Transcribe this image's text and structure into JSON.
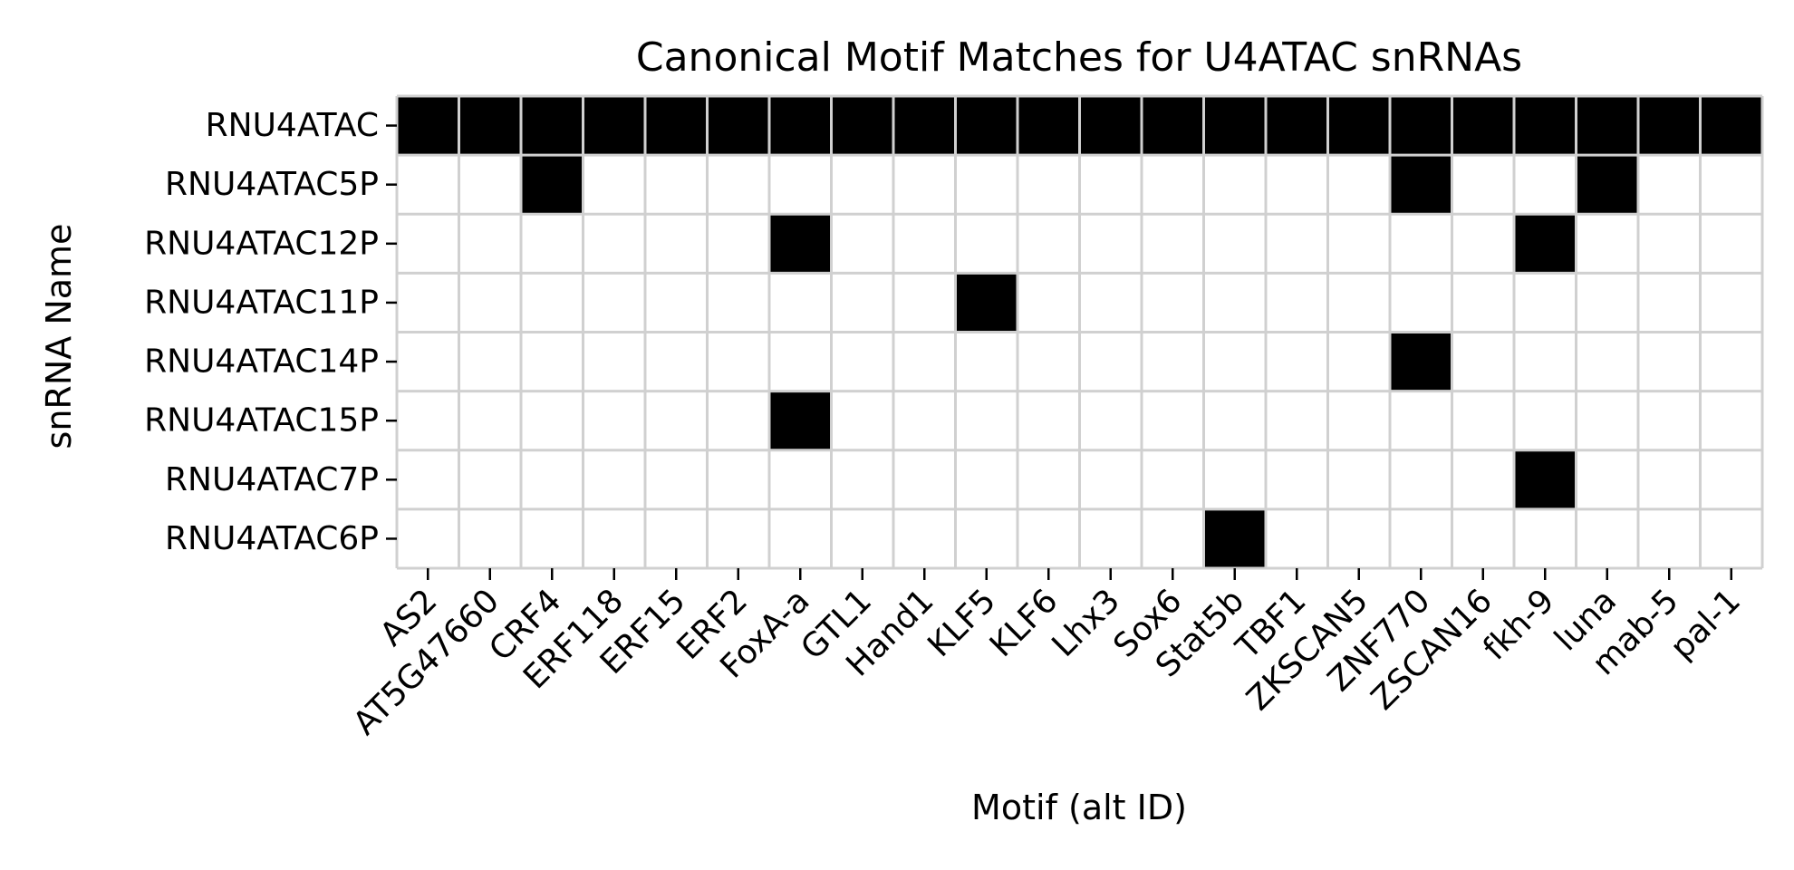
{
  "chart_data": {
    "type": "heatmap",
    "title": "Canonical Motif Matches for U4ATAC snRNAs",
    "xlabel": "Motif (alt ID)",
    "ylabel": "snRNA Name",
    "x_categories": [
      "AS2",
      "AT5G47660",
      "CRF4",
      "ERF118",
      "ERF15",
      "ERF2",
      "FoxA-a",
      "GTL1",
      "Hand1",
      "KLF5",
      "KLF6",
      "Lhx3",
      "Sox6",
      "Stat5b",
      "TBF1",
      "ZKSCAN5",
      "ZNF770",
      "ZSCAN16",
      "fkh-9",
      "luna",
      "mab-5",
      "pal-1"
    ],
    "y_categories": [
      "RNU4ATAC",
      "RNU4ATAC5P",
      "RNU4ATAC12P",
      "RNU4ATAC11P",
      "RNU4ATAC14P",
      "RNU4ATAC15P",
      "RNU4ATAC7P",
      "RNU4ATAC6P"
    ],
    "values": [
      [
        1,
        1,
        1,
        1,
        1,
        1,
        1,
        1,
        1,
        1,
        1,
        1,
        1,
        1,
        1,
        1,
        1,
        1,
        1,
        1,
        1,
        1
      ],
      [
        0,
        0,
        1,
        0,
        0,
        0,
        0,
        0,
        0,
        0,
        0,
        0,
        0,
        0,
        0,
        0,
        1,
        0,
        0,
        1,
        0,
        0
      ],
      [
        0,
        0,
        0,
        0,
        0,
        0,
        1,
        0,
        0,
        0,
        0,
        0,
        0,
        0,
        0,
        0,
        0,
        0,
        1,
        0,
        0,
        0
      ],
      [
        0,
        0,
        0,
        0,
        0,
        0,
        0,
        0,
        0,
        1,
        0,
        0,
        0,
        0,
        0,
        0,
        0,
        0,
        0,
        0,
        0,
        0
      ],
      [
        0,
        0,
        0,
        0,
        0,
        0,
        0,
        0,
        0,
        0,
        0,
        0,
        0,
        0,
        0,
        0,
        1,
        0,
        0,
        0,
        0,
        0
      ],
      [
        0,
        0,
        0,
        0,
        0,
        0,
        1,
        0,
        0,
        0,
        0,
        0,
        0,
        0,
        0,
        0,
        0,
        0,
        0,
        0,
        0,
        0
      ],
      [
        0,
        0,
        0,
        0,
        0,
        0,
        0,
        0,
        0,
        0,
        0,
        0,
        0,
        0,
        0,
        0,
        0,
        0,
        1,
        0,
        0,
        0
      ],
      [
        0,
        0,
        0,
        0,
        0,
        0,
        0,
        0,
        0,
        0,
        0,
        0,
        0,
        1,
        0,
        0,
        0,
        0,
        0,
        0,
        0,
        0
      ]
    ],
    "colors": {
      "match": "#000000",
      "no_match": "#ffffff",
      "grid": "#d0d0d0"
    },
    "legend": "none"
  }
}
